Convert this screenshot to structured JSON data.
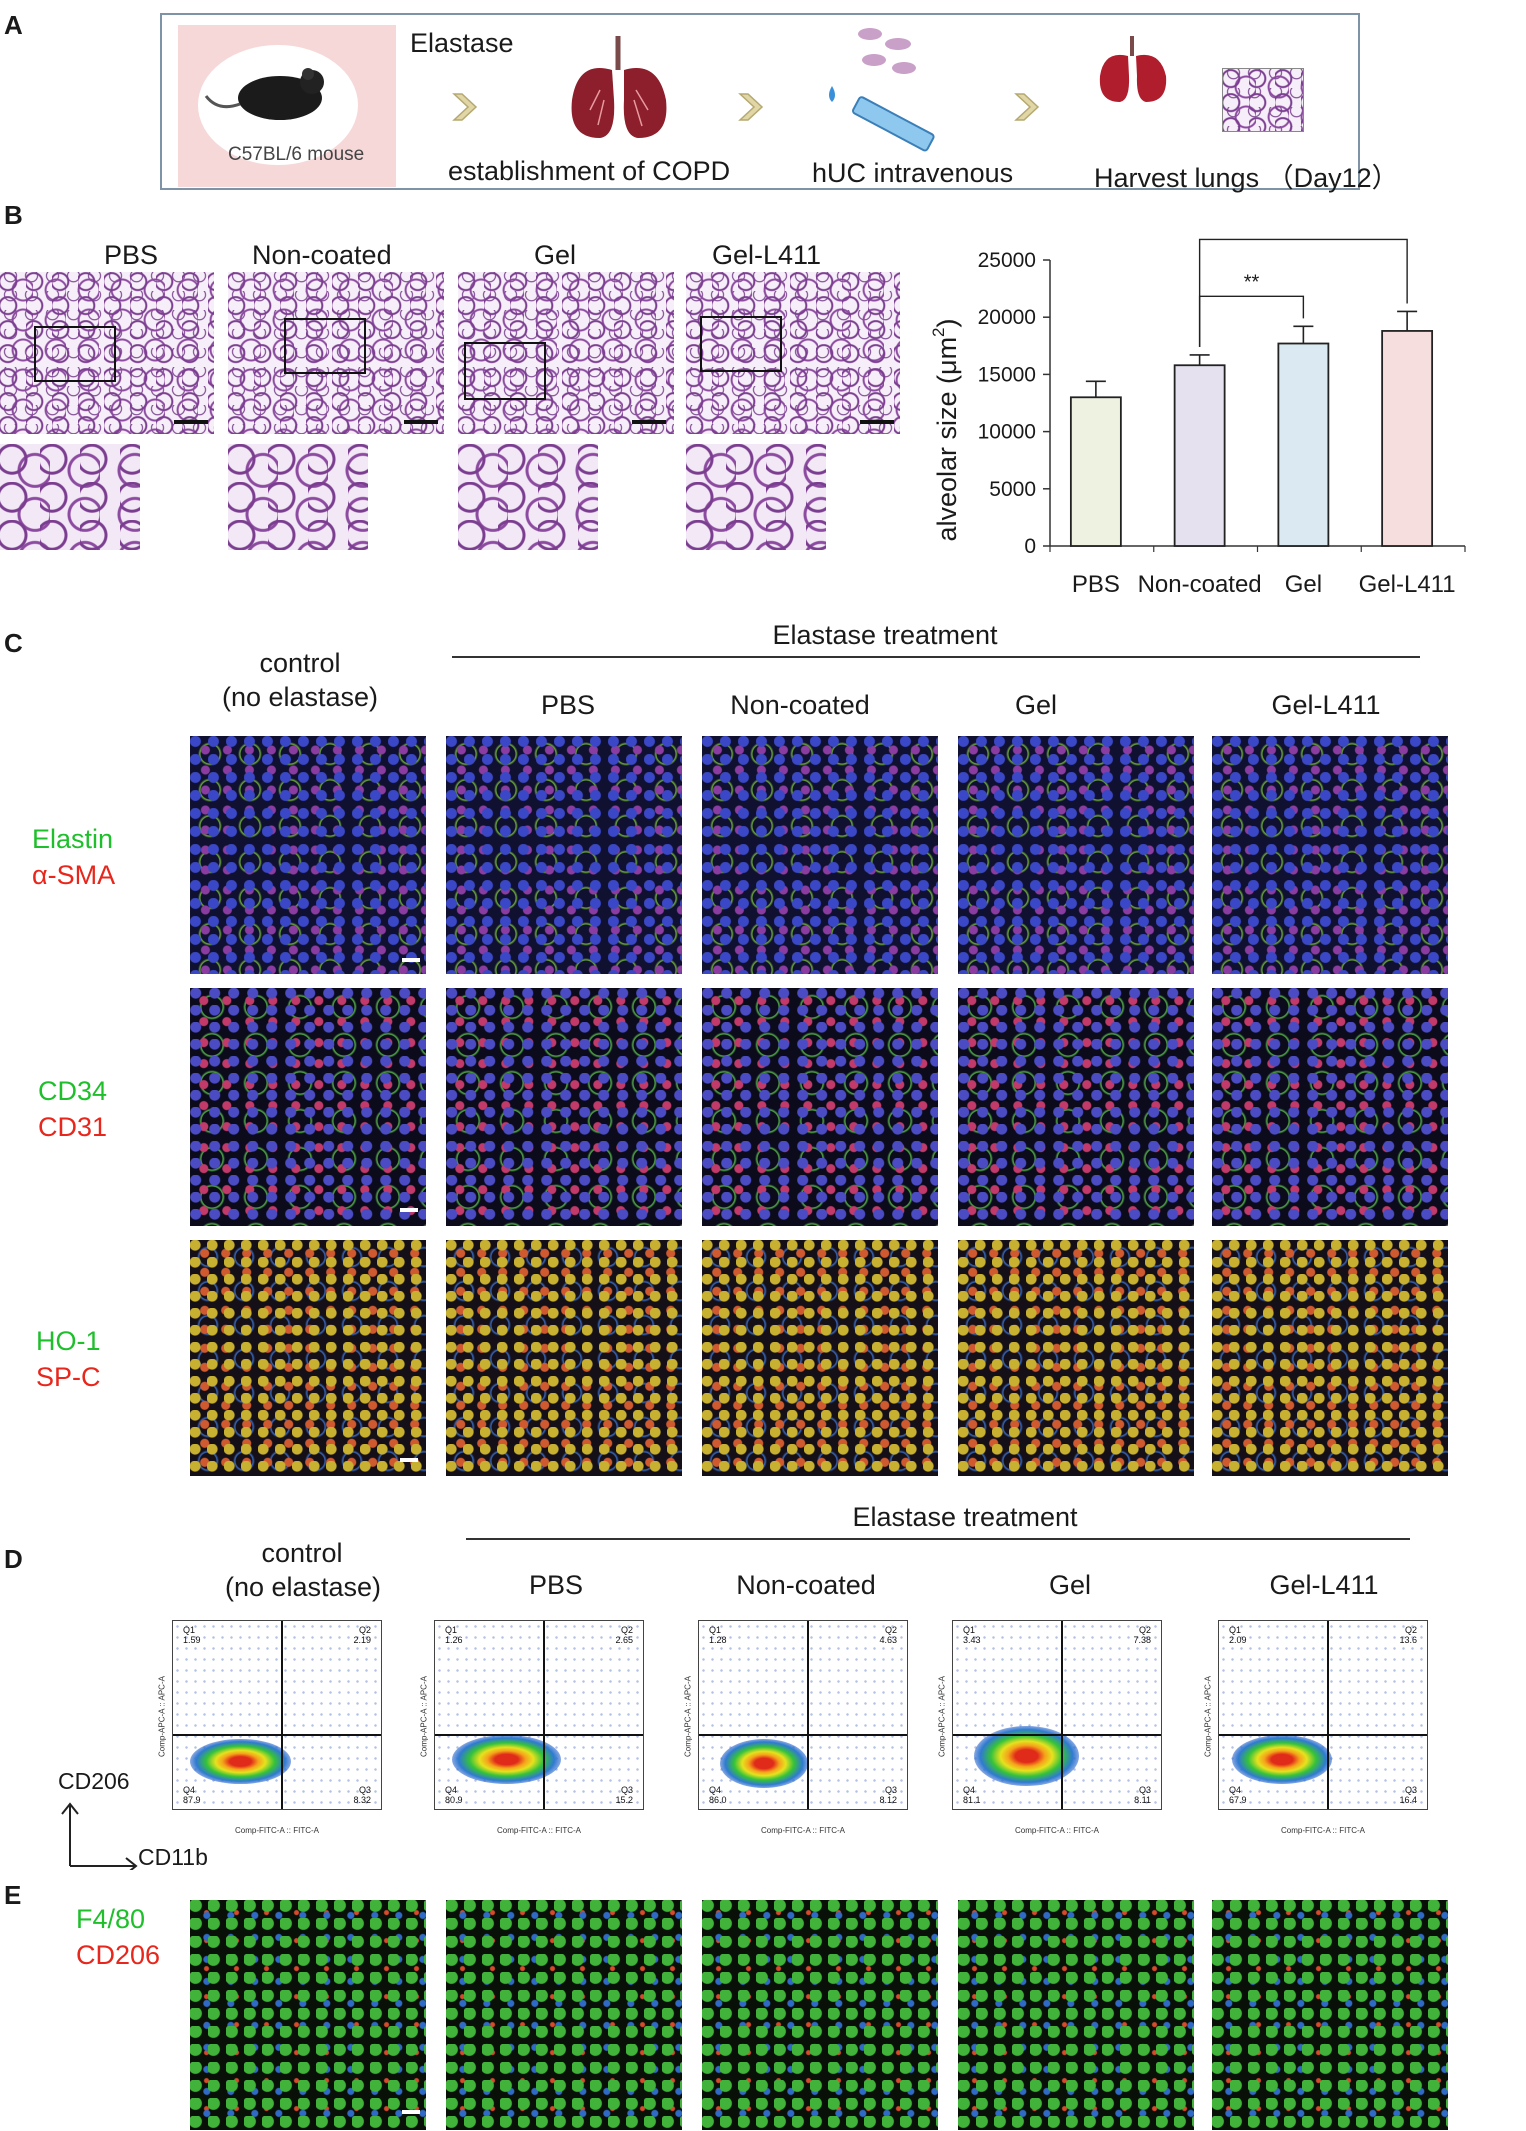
{
  "panel_labels": {
    "a": "A",
    "b": "B",
    "c": "C",
    "d": "D",
    "e": "E"
  },
  "panel_a": {
    "mouse_label": "C57BL/6 mouse",
    "elastase_label": "Elastase",
    "step1": "establishment of COPD",
    "step2": "hUC intravenous",
    "step3": "Harvest lungs （Day12）"
  },
  "groups": [
    "PBS",
    "Non-coated",
    "Gel",
    "Gel-L411"
  ],
  "control_label_1": "control",
  "control_label_2": "(no elastase)",
  "elastase_treatment": "Elastase treatment",
  "stains": {
    "row1": {
      "green": "Elastin",
      "red": "α-SMA"
    },
    "row2": {
      "green": "CD34",
      "red": "CD31"
    },
    "row3": {
      "green": "HO-1",
      "red": "SP-C"
    },
    "row_e": {
      "green": "F4/80",
      "red": "CD206"
    }
  },
  "colors": {
    "green_label": "#1fbf2c",
    "red_label": "#e8261b"
  },
  "chart_data": {
    "type": "bar",
    "categories": [
      "PBS",
      "Non-coated",
      "Gel",
      "Gel-L411"
    ],
    "values": [
      13000,
      15800,
      17700,
      18800
    ],
    "errors": [
      1400,
      900,
      1500,
      1700
    ],
    "colors": [
      "#eef2e0",
      "#e6e1ee",
      "#dbeaf2",
      "#f5dedd"
    ],
    "ylabel": "alveolar size (μm²)",
    "ylabel_text": "alveolar size (μm",
    "ylabel_sup": "2",
    "ylabel_close": ")",
    "ylim": [
      0,
      25000
    ],
    "yticks": [
      0,
      5000,
      10000,
      15000,
      20000,
      25000
    ],
    "significance": [
      {
        "from": "Non-coated",
        "to": "Gel",
        "label": "**"
      },
      {
        "from": "Non-coated",
        "to": "Gel-L411",
        "label": "**"
      }
    ]
  },
  "flow": {
    "axis_y_marker": "CD206",
    "axis_x_marker": "CD11b",
    "y_param": "Comp-APC-A :: APC-A",
    "x_param": "Comp-FITC-A :: FITC-A",
    "plots": [
      {
        "q1": "1.59",
        "q2": "2.19",
        "q3": "8.32",
        "q4": "87.9"
      },
      {
        "q1": "1.26",
        "q2": "2.65",
        "q3": "15.2",
        "q4": "80.9"
      },
      {
        "q1": "1.28",
        "q2": "4.63",
        "q3": "8.12",
        "q4": "86.0"
      },
      {
        "q1": "3.43",
        "q2": "7.38",
        "q3": "8.11",
        "q4": "81.1"
      },
      {
        "q1": "2.09",
        "q2": "13.6",
        "q3": "16.4",
        "q4": "67.9"
      }
    ]
  }
}
